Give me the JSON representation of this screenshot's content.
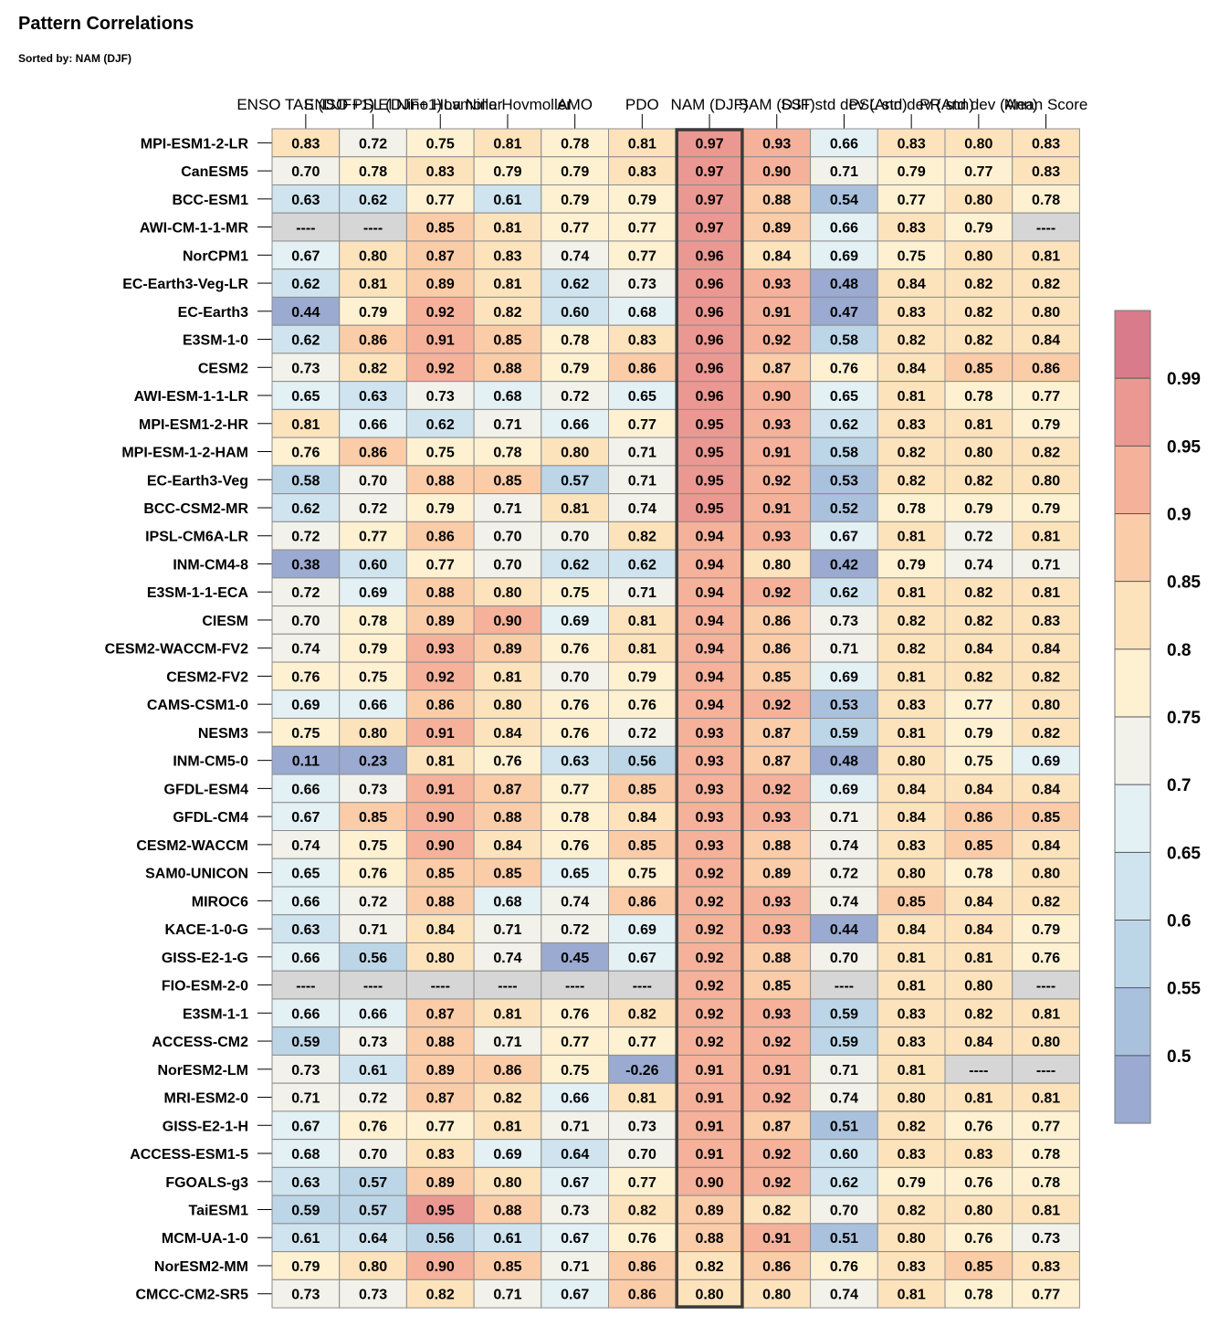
{
  "chart_data": {
    "type": "heatmap",
    "title": "Pattern Correlations",
    "subtitle": "Sorted by: NAM (DJF)",
    "missing_label": "----",
    "highlight_column": "NAM (DJF)",
    "columns": [
      "ENSO TAS (DJF+1)",
      "ENSO PSL (DJF+1)",
      "El Nino Hovmoller",
      "La Nina Hovmoller",
      "AMO",
      "PDO",
      "NAM (DJF)",
      "SAM (DJF)",
      "SST std dev (Ann)",
      "PSL std dev (Ann)",
      "PR std dev (Ann)",
      "Mean Score"
    ],
    "rows": [
      "MPI-ESM1-2-LR",
      "CanESM5",
      "BCC-ESM1",
      "AWI-CM-1-1-MR",
      "NorCPM1",
      "EC-Earth3-Veg-LR",
      "EC-Earth3",
      "E3SM-1-0",
      "CESM2",
      "AWI-ESM-1-1-LR",
      "MPI-ESM1-2-HR",
      "MPI-ESM-1-2-HAM",
      "EC-Earth3-Veg",
      "BCC-CSM2-MR",
      "IPSL-CM6A-LR",
      "INM-CM4-8",
      "E3SM-1-1-ECA",
      "CIESM",
      "CESM2-WACCM-FV2",
      "CESM2-FV2",
      "CAMS-CSM1-0",
      "NESM3",
      "INM-CM5-0",
      "GFDL-ESM4",
      "GFDL-CM4",
      "CESM2-WACCM",
      "SAM0-UNICON",
      "MIROC6",
      "KACE-1-0-G",
      "GISS-E2-1-G",
      "FIO-ESM-2-0",
      "E3SM-1-1",
      "ACCESS-CM2",
      "NorESM2-LM",
      "MRI-ESM2-0",
      "GISS-E2-1-H",
      "ACCESS-ESM1-5",
      "FGOALS-g3",
      "TaiESM1",
      "MCM-UA-1-0",
      "NorESM2-MM",
      "CMCC-CM2-SR5"
    ],
    "values": [
      [
        0.83,
        0.72,
        0.75,
        0.81,
        0.78,
        0.81,
        0.97,
        0.93,
        0.66,
        0.83,
        0.8,
        0.83
      ],
      [
        0.7,
        0.78,
        0.83,
        0.79,
        0.79,
        0.83,
        0.97,
        0.9,
        0.71,
        0.79,
        0.77,
        0.83
      ],
      [
        0.63,
        0.62,
        0.77,
        0.61,
        0.79,
        0.79,
        0.97,
        0.88,
        0.54,
        0.77,
        0.8,
        0.78
      ],
      [
        null,
        null,
        0.85,
        0.81,
        0.77,
        0.77,
        0.97,
        0.89,
        0.66,
        0.83,
        0.79,
        null
      ],
      [
        0.67,
        0.8,
        0.87,
        0.83,
        0.74,
        0.77,
        0.96,
        0.84,
        0.69,
        0.75,
        0.8,
        0.81
      ],
      [
        0.62,
        0.81,
        0.89,
        0.81,
        0.62,
        0.73,
        0.96,
        0.93,
        0.48,
        0.84,
        0.82,
        0.82
      ],
      [
        0.44,
        0.79,
        0.92,
        0.82,
        0.6,
        0.68,
        0.96,
        0.91,
        0.47,
        0.83,
        0.82,
        0.8
      ],
      [
        0.62,
        0.86,
        0.91,
        0.85,
        0.78,
        0.83,
        0.96,
        0.92,
        0.58,
        0.82,
        0.82,
        0.84
      ],
      [
        0.73,
        0.82,
        0.92,
        0.88,
        0.79,
        0.86,
        0.96,
        0.87,
        0.76,
        0.84,
        0.85,
        0.86
      ],
      [
        0.65,
        0.63,
        0.73,
        0.68,
        0.72,
        0.65,
        0.96,
        0.9,
        0.65,
        0.81,
        0.78,
        0.77
      ],
      [
        0.81,
        0.66,
        0.62,
        0.71,
        0.66,
        0.77,
        0.95,
        0.93,
        0.62,
        0.83,
        0.81,
        0.79
      ],
      [
        0.76,
        0.86,
        0.75,
        0.78,
        0.8,
        0.71,
        0.95,
        0.91,
        0.58,
        0.82,
        0.8,
        0.82
      ],
      [
        0.58,
        0.7,
        0.88,
        0.85,
        0.57,
        0.71,
        0.95,
        0.92,
        0.53,
        0.82,
        0.82,
        0.8
      ],
      [
        0.62,
        0.72,
        0.79,
        0.71,
        0.81,
        0.74,
        0.95,
        0.91,
        0.52,
        0.78,
        0.79,
        0.79
      ],
      [
        0.72,
        0.77,
        0.86,
        0.7,
        0.7,
        0.82,
        0.94,
        0.93,
        0.67,
        0.81,
        0.72,
        0.81
      ],
      [
        0.38,
        0.6,
        0.77,
        0.7,
        0.62,
        0.62,
        0.94,
        0.8,
        0.42,
        0.79,
        0.74,
        0.71
      ],
      [
        0.72,
        0.69,
        0.88,
        0.8,
        0.75,
        0.71,
        0.94,
        0.92,
        0.62,
        0.81,
        0.82,
        0.81
      ],
      [
        0.7,
        0.78,
        0.89,
        0.9,
        0.69,
        0.81,
        0.94,
        0.86,
        0.73,
        0.82,
        0.82,
        0.83
      ],
      [
        0.74,
        0.79,
        0.93,
        0.89,
        0.76,
        0.81,
        0.94,
        0.86,
        0.71,
        0.82,
        0.84,
        0.84
      ],
      [
        0.76,
        0.75,
        0.92,
        0.81,
        0.7,
        0.79,
        0.94,
        0.85,
        0.69,
        0.81,
        0.82,
        0.82
      ],
      [
        0.69,
        0.66,
        0.86,
        0.8,
        0.76,
        0.76,
        0.94,
        0.92,
        0.53,
        0.83,
        0.77,
        0.8
      ],
      [
        0.75,
        0.8,
        0.91,
        0.84,
        0.76,
        0.72,
        0.93,
        0.87,
        0.59,
        0.81,
        0.79,
        0.82
      ],
      [
        0.11,
        0.23,
        0.81,
        0.76,
        0.63,
        0.56,
        0.93,
        0.87,
        0.48,
        0.8,
        0.75,
        0.69
      ],
      [
        0.66,
        0.73,
        0.91,
        0.87,
        0.77,
        0.85,
        0.93,
        0.92,
        0.69,
        0.84,
        0.84,
        0.84
      ],
      [
        0.67,
        0.85,
        0.9,
        0.88,
        0.78,
        0.84,
        0.93,
        0.93,
        0.71,
        0.84,
        0.86,
        0.85
      ],
      [
        0.74,
        0.75,
        0.9,
        0.84,
        0.76,
        0.85,
        0.93,
        0.88,
        0.74,
        0.83,
        0.85,
        0.84
      ],
      [
        0.65,
        0.76,
        0.85,
        0.85,
        0.65,
        0.75,
        0.92,
        0.89,
        0.72,
        0.8,
        0.78,
        0.8
      ],
      [
        0.66,
        0.72,
        0.88,
        0.68,
        0.74,
        0.86,
        0.92,
        0.93,
        0.74,
        0.85,
        0.84,
        0.82
      ],
      [
        0.63,
        0.71,
        0.84,
        0.71,
        0.72,
        0.69,
        0.92,
        0.93,
        0.44,
        0.84,
        0.84,
        0.79
      ],
      [
        0.66,
        0.56,
        0.8,
        0.74,
        0.45,
        0.67,
        0.92,
        0.88,
        0.7,
        0.81,
        0.81,
        0.76
      ],
      [
        null,
        null,
        null,
        null,
        null,
        null,
        0.92,
        0.85,
        null,
        0.81,
        0.8,
        null
      ],
      [
        0.66,
        0.66,
        0.87,
        0.81,
        0.76,
        0.82,
        0.92,
        0.93,
        0.59,
        0.83,
        0.82,
        0.81
      ],
      [
        0.59,
        0.73,
        0.88,
        0.71,
        0.77,
        0.77,
        0.92,
        0.92,
        0.59,
        0.83,
        0.84,
        0.8
      ],
      [
        0.73,
        0.61,
        0.89,
        0.86,
        0.75,
        -0.26,
        0.91,
        0.91,
        0.71,
        0.81,
        null,
        null
      ],
      [
        0.71,
        0.72,
        0.87,
        0.82,
        0.66,
        0.81,
        0.91,
        0.92,
        0.74,
        0.8,
        0.81,
        0.81
      ],
      [
        0.67,
        0.76,
        0.77,
        0.81,
        0.71,
        0.73,
        0.91,
        0.87,
        0.51,
        0.82,
        0.76,
        0.77
      ],
      [
        0.68,
        0.7,
        0.83,
        0.69,
        0.64,
        0.7,
        0.91,
        0.92,
        0.6,
        0.83,
        0.83,
        0.78
      ],
      [
        0.63,
        0.57,
        0.89,
        0.8,
        0.67,
        0.77,
        0.9,
        0.92,
        0.62,
        0.79,
        0.76,
        0.78
      ],
      [
        0.59,
        0.57,
        0.95,
        0.88,
        0.73,
        0.82,
        0.89,
        0.82,
        0.7,
        0.82,
        0.8,
        0.81
      ],
      [
        0.61,
        0.64,
        0.56,
        0.61,
        0.67,
        0.76,
        0.88,
        0.91,
        0.51,
        0.8,
        0.76,
        0.73
      ],
      [
        0.79,
        0.8,
        0.9,
        0.85,
        0.71,
        0.86,
        0.82,
        0.86,
        0.76,
        0.83,
        0.85,
        0.83
      ],
      [
        0.73,
        0.73,
        0.82,
        0.71,
        0.67,
        0.86,
        0.8,
        0.8,
        0.74,
        0.81,
        0.78,
        0.77
      ]
    ],
    "colorbar": {
      "levels": [
        0.5,
        0.55,
        0.6,
        0.65,
        0.7,
        0.75,
        0.8,
        0.85,
        0.9,
        0.95,
        0.99
      ],
      "tick_labels": [
        "0.5",
        "0.55",
        "0.6",
        "0.65",
        "0.7",
        "0.75",
        "0.8",
        "0.85",
        "0.9",
        "0.95",
        "0.99"
      ],
      "colors": [
        "#9aaad0",
        "#aac1dd",
        "#bcd6e8",
        "#cfe4ef",
        "#e3f0f4",
        "#f2f2ea",
        "#fdf1d2",
        "#fde3bc",
        "#fbcca8",
        "#f5b19a",
        "#eb9892",
        "#d97b8a"
      ],
      "missing_color": "#d6d6d6"
    }
  }
}
